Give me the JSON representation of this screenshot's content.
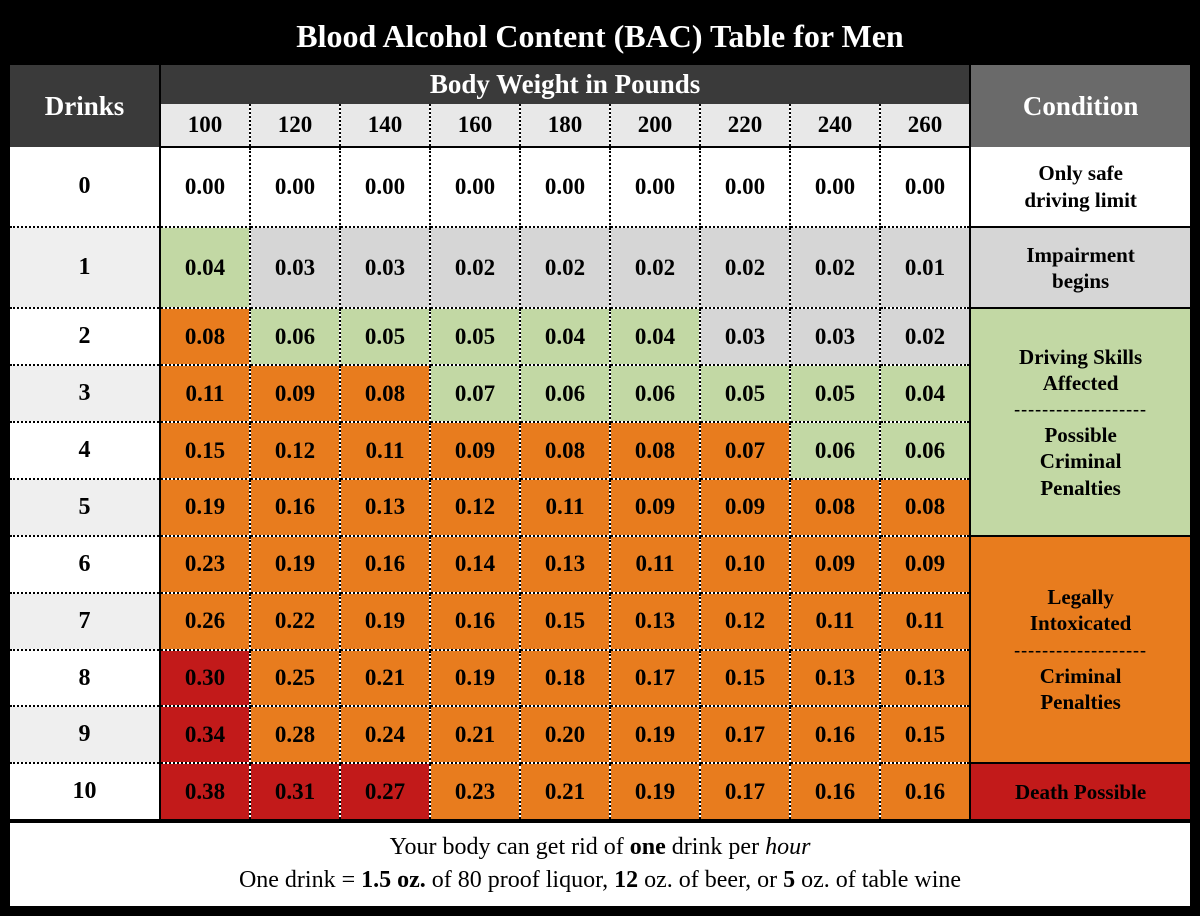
{
  "title": "Blood Alcohol Content (BAC) Table for Men",
  "headers": {
    "drinks": "Drinks",
    "body_weight": "Body Weight in Pounds",
    "condition": "Condition"
  },
  "weights": [
    "100",
    "120",
    "140",
    "160",
    "180",
    "200",
    "220",
    "240",
    "260"
  ],
  "rows": [
    {
      "drinks": "0",
      "vals": [
        "0.00",
        "0.00",
        "0.00",
        "0.00",
        "0.00",
        "0.00",
        "0.00",
        "0.00",
        "0.00"
      ],
      "colors": [
        "bg-white",
        "bg-white",
        "bg-white",
        "bg-white",
        "bg-white",
        "bg-white",
        "bg-white",
        "bg-white",
        "bg-white"
      ],
      "drinks_bg": "bg-white"
    },
    {
      "drinks": "1",
      "vals": [
        "0.04",
        "0.03",
        "0.03",
        "0.02",
        "0.02",
        "0.02",
        "0.02",
        "0.02",
        "0.01"
      ],
      "colors": [
        "bg-green",
        "bg-lgrey",
        "bg-lgrey",
        "bg-lgrey",
        "bg-lgrey",
        "bg-lgrey",
        "bg-lgrey",
        "bg-lgrey",
        "bg-lgrey"
      ],
      "drinks_bg": "bg-rowgrey"
    },
    {
      "drinks": "2",
      "vals": [
        "0.08",
        "0.06",
        "0.05",
        "0.05",
        "0.04",
        "0.04",
        "0.03",
        "0.03",
        "0.02"
      ],
      "colors": [
        "bg-orange",
        "bg-green",
        "bg-green",
        "bg-green",
        "bg-green",
        "bg-green",
        "bg-lgrey",
        "bg-lgrey",
        "bg-lgrey"
      ],
      "drinks_bg": "bg-white"
    },
    {
      "drinks": "3",
      "vals": [
        "0.11",
        "0.09",
        "0.08",
        "0.07",
        "0.06",
        "0.06",
        "0.05",
        "0.05",
        "0.04"
      ],
      "colors": [
        "bg-orange",
        "bg-orange",
        "bg-orange",
        "bg-green",
        "bg-green",
        "bg-green",
        "bg-green",
        "bg-green",
        "bg-green"
      ],
      "drinks_bg": "bg-rowgrey"
    },
    {
      "drinks": "4",
      "vals": [
        "0.15",
        "0.12",
        "0.11",
        "0.09",
        "0.08",
        "0.08",
        "0.07",
        "0.06",
        "0.06"
      ],
      "colors": [
        "bg-orange",
        "bg-orange",
        "bg-orange",
        "bg-orange",
        "bg-orange",
        "bg-orange",
        "bg-orange",
        "bg-green",
        "bg-green"
      ],
      "drinks_bg": "bg-white"
    },
    {
      "drinks": "5",
      "vals": [
        "0.19",
        "0.16",
        "0.13",
        "0.12",
        "0.11",
        "0.09",
        "0.09",
        "0.08",
        "0.08"
      ],
      "colors": [
        "bg-orange",
        "bg-orange",
        "bg-orange",
        "bg-orange",
        "bg-orange",
        "bg-orange",
        "bg-orange",
        "bg-orange",
        "bg-orange"
      ],
      "drinks_bg": "bg-rowgrey"
    },
    {
      "drinks": "6",
      "vals": [
        "0.23",
        "0.19",
        "0.16",
        "0.14",
        "0.13",
        "0.11",
        "0.10",
        "0.09",
        "0.09"
      ],
      "colors": [
        "bg-orange",
        "bg-orange",
        "bg-orange",
        "bg-orange",
        "bg-orange",
        "bg-orange",
        "bg-orange",
        "bg-orange",
        "bg-orange"
      ],
      "drinks_bg": "bg-white"
    },
    {
      "drinks": "7",
      "vals": [
        "0.26",
        "0.22",
        "0.19",
        "0.16",
        "0.15",
        "0.13",
        "0.12",
        "0.11",
        "0.11"
      ],
      "colors": [
        "bg-orange",
        "bg-orange",
        "bg-orange",
        "bg-orange",
        "bg-orange",
        "bg-orange",
        "bg-orange",
        "bg-orange",
        "bg-orange"
      ],
      "drinks_bg": "bg-rowgrey"
    },
    {
      "drinks": "8",
      "vals": [
        "0.30",
        "0.25",
        "0.21",
        "0.19",
        "0.18",
        "0.17",
        "0.15",
        "0.13",
        "0.13"
      ],
      "colors": [
        "bg-red",
        "bg-orange",
        "bg-orange",
        "bg-orange",
        "bg-orange",
        "bg-orange",
        "bg-orange",
        "bg-orange",
        "bg-orange"
      ],
      "drinks_bg": "bg-white"
    },
    {
      "drinks": "9",
      "vals": [
        "0.34",
        "0.28",
        "0.24",
        "0.21",
        "0.20",
        "0.19",
        "0.17",
        "0.16",
        "0.15"
      ],
      "colors": [
        "bg-red",
        "bg-orange",
        "bg-orange",
        "bg-orange",
        "bg-orange",
        "bg-orange",
        "bg-orange",
        "bg-orange",
        "bg-orange"
      ],
      "drinks_bg": "bg-rowgrey"
    },
    {
      "drinks": "10",
      "vals": [
        "0.38",
        "0.31",
        "0.27",
        "0.23",
        "0.21",
        "0.19",
        "0.17",
        "0.16",
        "0.16"
      ],
      "colors": [
        "bg-red",
        "bg-red",
        "bg-red",
        "bg-orange",
        "bg-orange",
        "bg-orange",
        "bg-orange",
        "bg-orange",
        "bg-orange"
      ],
      "drinks_bg": "bg-white"
    }
  ],
  "conditions": [
    {
      "rowspan": 1,
      "bg": "bg-white",
      "lines": [
        "Only safe",
        "driving limit"
      ]
    },
    {
      "rowspan": 1,
      "bg": "bg-lgrey",
      "lines": [
        "Impairment",
        "begins"
      ]
    },
    {
      "rowspan": 4,
      "bg": "bg-green",
      "lines": [
        "Driving Skills",
        "Affected",
        "---",
        "Possible",
        "Criminal",
        "Penalties"
      ]
    },
    {
      "rowspan": 4,
      "bg": "bg-orange",
      "lines": [
        "Legally",
        "Intoxicated",
        "---",
        "Criminal",
        "Penalties"
      ]
    },
    {
      "rowspan": 1,
      "bg": "bg-red",
      "lines": [
        "Death Possible"
      ]
    }
  ],
  "footer": {
    "line1_a": "Your body can get rid of ",
    "line1_b": "one",
    "line1_c": " drink per ",
    "line1_d": "hour",
    "line2_a": "One drink = ",
    "line2_b": "1.5 oz.",
    "line2_c": " of 80 proof liquor, ",
    "line2_d": "12",
    "line2_e": " oz. of beer, or ",
    "line2_f": "5",
    "line2_g": " oz. of table wine"
  },
  "palette": {
    "white": "#ffffff",
    "light_grey": "#d6d6d6",
    "row_grey": "#efefef",
    "green": "#c2d8a4",
    "orange": "#e87c1e",
    "red": "#c21a1a",
    "hdr_dark": "#3a3a3a",
    "hdr_med": "#6a6a6a",
    "black": "#000000"
  },
  "type": "table",
  "font_family": "Georgia, Times New Roman, serif"
}
